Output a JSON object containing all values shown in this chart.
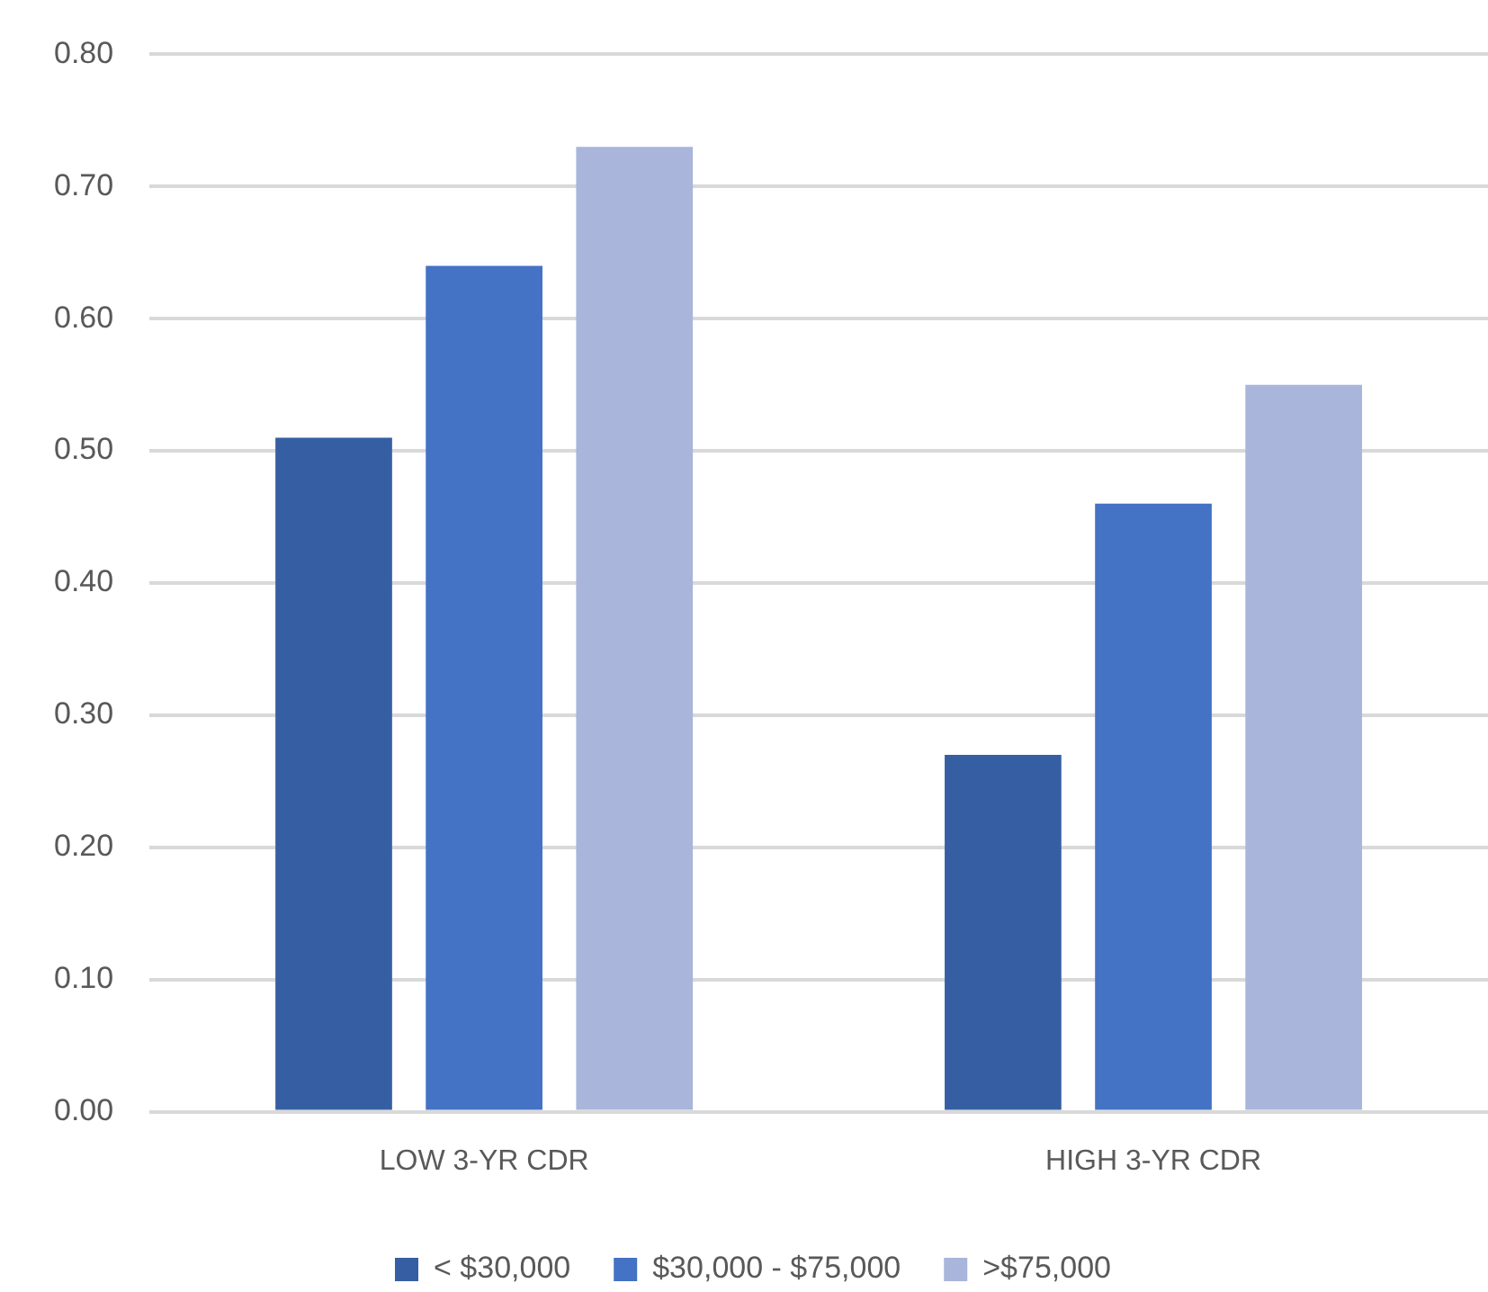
{
  "chart_data": {
    "type": "bar",
    "categories": [
      "LOW 3-YR CDR",
      "HIGH 3-YR CDR"
    ],
    "series": [
      {
        "name": "< $30,000",
        "color": "#365fa3",
        "values": [
          0.51,
          0.27
        ]
      },
      {
        "name": "$30,000 - $75,000",
        "color": "#4472c4",
        "values": [
          0.64,
          0.46
        ]
      },
      {
        "name": ">$75,000",
        "color": "#a9b5da",
        "values": [
          0.73,
          0.55
        ]
      }
    ],
    "ylim": [
      0,
      0.8
    ],
    "yticks": [
      {
        "value": 0,
        "label": "0.00"
      },
      {
        "value": 0.1,
        "label": "0.10"
      },
      {
        "value": 0.2,
        "label": "0.20"
      },
      {
        "value": 0.3,
        "label": "0.30"
      },
      {
        "value": 0.4,
        "label": "0.40"
      },
      {
        "value": 0.5,
        "label": "0.50"
      },
      {
        "value": 0.6,
        "label": "0.60"
      },
      {
        "value": 0.7,
        "label": "0.70"
      },
      {
        "value": 0.8,
        "label": "0.80"
      }
    ],
    "grid": "y",
    "legend": "bottom"
  }
}
